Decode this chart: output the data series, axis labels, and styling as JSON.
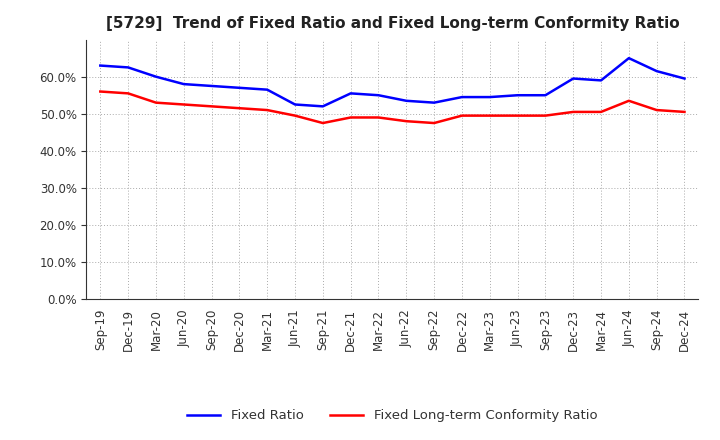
{
  "title": "[5729]  Trend of Fixed Ratio and Fixed Long-term Conformity Ratio",
  "x_labels": [
    "Sep-19",
    "Dec-19",
    "Mar-20",
    "Jun-20",
    "Sep-20",
    "Dec-20",
    "Mar-21",
    "Jun-21",
    "Sep-21",
    "Dec-21",
    "Mar-22",
    "Jun-22",
    "Sep-22",
    "Dec-22",
    "Mar-23",
    "Jun-23",
    "Sep-23",
    "Dec-23",
    "Mar-24",
    "Jun-24",
    "Sep-24",
    "Dec-24"
  ],
  "fixed_ratio": [
    63.0,
    62.5,
    60.0,
    58.0,
    57.5,
    57.0,
    56.5,
    52.5,
    52.0,
    55.5,
    55.0,
    53.5,
    53.0,
    54.5,
    54.5,
    55.0,
    55.0,
    59.5,
    59.0,
    65.0,
    61.5,
    59.5
  ],
  "fixed_lt_ratio": [
    56.0,
    55.5,
    53.0,
    52.5,
    52.0,
    51.5,
    51.0,
    49.5,
    47.5,
    49.0,
    49.0,
    48.0,
    47.5,
    49.5,
    49.5,
    49.5,
    49.5,
    50.5,
    50.5,
    53.5,
    51.0,
    50.5
  ],
  "fixed_ratio_color": "#0000FF",
  "fixed_lt_ratio_color": "#FF0000",
  "ylim": [
    0,
    70
  ],
  "yticks": [
    0.0,
    10.0,
    20.0,
    30.0,
    40.0,
    50.0,
    60.0
  ],
  "background_color": "#FFFFFF",
  "grid_color": "#AAAAAA",
  "title_fontsize": 11,
  "axis_fontsize": 8.5,
  "legend_fontsize": 9.5
}
